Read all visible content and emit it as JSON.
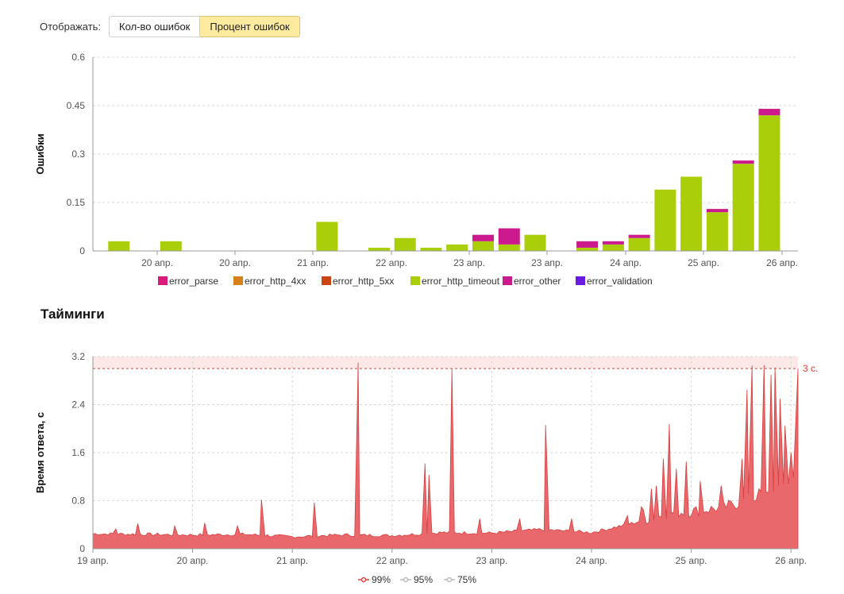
{
  "controls": {
    "display_label": "Отображать:",
    "buttons": [
      {
        "label": "Кол-во ошибок",
        "active": false
      },
      {
        "label": "Процент ошибок",
        "active": true
      }
    ]
  },
  "timings_title": "Тайминги",
  "chart_data": [
    {
      "type": "bar",
      "stacked": true,
      "ylabel": "Ошибки",
      "ylim": [
        0,
        0.6
      ],
      "yticks": [
        "0",
        "0.15",
        "0.3",
        "0.45",
        "0.6"
      ],
      "xticks": [
        "20 апр.",
        "20 апр.",
        "21 апр.",
        "22 апр.",
        "23 апр.",
        "23 апр.",
        "24 апр.",
        "25 апр.",
        "26 апр."
      ],
      "grid": true,
      "legend_position": "bottom",
      "series": [
        {
          "name": "error_parse",
          "color": "#d81b7b"
        },
        {
          "name": "error_http_4xx",
          "color": "#d8801a"
        },
        {
          "name": "error_http_5xx",
          "color": "#cc4414"
        },
        {
          "name": "error_http_timeout",
          "color": "#aacf0a"
        },
        {
          "name": "error_other",
          "color": "#cc1a8e"
        },
        {
          "name": "error_validation",
          "color": "#6a1ae0"
        }
      ],
      "bars": [
        {
          "timeout": 0.03,
          "other": 0
        },
        {
          "timeout": 0,
          "other": 0
        },
        {
          "timeout": 0.03,
          "other": 0
        },
        {
          "timeout": 0,
          "other": 0
        },
        {
          "timeout": 0,
          "other": 0
        },
        {
          "timeout": 0,
          "other": 0
        },
        {
          "timeout": 0,
          "other": 0
        },
        {
          "timeout": 0,
          "other": 0
        },
        {
          "timeout": 0.09,
          "other": 0
        },
        {
          "timeout": 0,
          "other": 0
        },
        {
          "timeout": 0.01,
          "other": 0
        },
        {
          "timeout": 0.04,
          "other": 0
        },
        {
          "timeout": 0.01,
          "other": 0
        },
        {
          "timeout": 0.02,
          "other": 0
        },
        {
          "timeout": 0.03,
          "other": 0.02
        },
        {
          "timeout": 0.02,
          "other": 0.05
        },
        {
          "timeout": 0.05,
          "other": 0
        },
        {
          "timeout": 0,
          "other": 0
        },
        {
          "timeout": 0.01,
          "other": 0.02
        },
        {
          "timeout": 0.02,
          "other": 0.01
        },
        {
          "timeout": 0.04,
          "other": 0.01
        },
        {
          "timeout": 0.19,
          "other": 0
        },
        {
          "timeout": 0.23,
          "other": 0
        },
        {
          "timeout": 0.12,
          "other": 0.01
        },
        {
          "timeout": 0.27,
          "other": 0.01
        },
        {
          "timeout": 0.42,
          "other": 0.02
        }
      ]
    },
    {
      "type": "area",
      "ylabel": "Время ответа, с",
      "ylim": [
        0,
        3.2
      ],
      "yticks": [
        "0",
        "0.8",
        "1.6",
        "2.4",
        "3.2"
      ],
      "xticks": [
        "19 апр.",
        "20 апр.",
        "21 апр.",
        "22 апр.",
        "23 апр.",
        "24 апр.",
        "25 апр.",
        "26 апр."
      ],
      "xlim_days": [
        19.0,
        26.07
      ],
      "threshold": {
        "value": 3.0,
        "label": "3 с.",
        "color": "#e0403a"
      },
      "series": [
        {
          "name": "99%",
          "color": "#e0403a"
        },
        {
          "name": "95%",
          "color": "#bbbbbb"
        },
        {
          "name": "75%",
          "color": "#bbbbbb"
        }
      ],
      "baseline": [
        [
          19.0,
          0.25
        ],
        [
          19.5,
          0.24
        ],
        [
          20.0,
          0.23
        ],
        [
          20.5,
          0.24
        ],
        [
          21.0,
          0.2
        ],
        [
          21.5,
          0.23
        ],
        [
          22.0,
          0.22
        ],
        [
          22.5,
          0.27
        ],
        [
          23.0,
          0.26
        ],
        [
          23.5,
          0.32
        ],
        [
          24.0,
          0.27
        ],
        [
          24.4,
          0.42
        ],
        [
          24.8,
          0.6
        ],
        [
          25.0,
          0.62
        ],
        [
          25.3,
          0.68
        ],
        [
          25.6,
          0.82
        ],
        [
          25.8,
          0.9
        ],
        [
          26.0,
          1.15
        ],
        [
          26.07,
          1.2
        ]
      ],
      "spikes": [
        [
          19.23,
          0.33
        ],
        [
          19.45,
          0.42
        ],
        [
          19.82,
          0.38
        ],
        [
          20.12,
          0.43
        ],
        [
          20.45,
          0.38
        ],
        [
          20.69,
          0.82
        ],
        [
          21.22,
          0.77
        ],
        [
          21.66,
          3.1
        ],
        [
          22.33,
          1.42
        ],
        [
          22.37,
          1.23
        ],
        [
          22.6,
          3.0
        ],
        [
          22.88,
          0.5
        ],
        [
          23.28,
          0.5
        ],
        [
          23.54,
          2.06
        ],
        [
          23.8,
          0.5
        ],
        [
          24.36,
          0.55
        ],
        [
          24.5,
          0.7
        ],
        [
          24.52,
          0.65
        ],
        [
          24.6,
          1.0
        ],
        [
          24.65,
          1.05
        ],
        [
          24.72,
          1.5
        ],
        [
          24.78,
          2.08
        ],
        [
          24.85,
          1.33
        ],
        [
          24.95,
          1.45
        ],
        [
          25.09,
          1.13
        ],
        [
          25.3,
          1.05
        ],
        [
          25.51,
          1.5
        ],
        [
          25.56,
          2.65
        ],
        [
          25.61,
          3.05
        ],
        [
          25.68,
          1.0
        ],
        [
          25.73,
          3.06
        ],
        [
          25.8,
          2.9
        ],
        [
          25.84,
          3.02
        ],
        [
          25.89,
          2.5
        ],
        [
          25.94,
          2.05
        ],
        [
          26.0,
          1.6
        ],
        [
          26.05,
          1.2
        ],
        [
          26.07,
          3.0
        ]
      ]
    }
  ]
}
